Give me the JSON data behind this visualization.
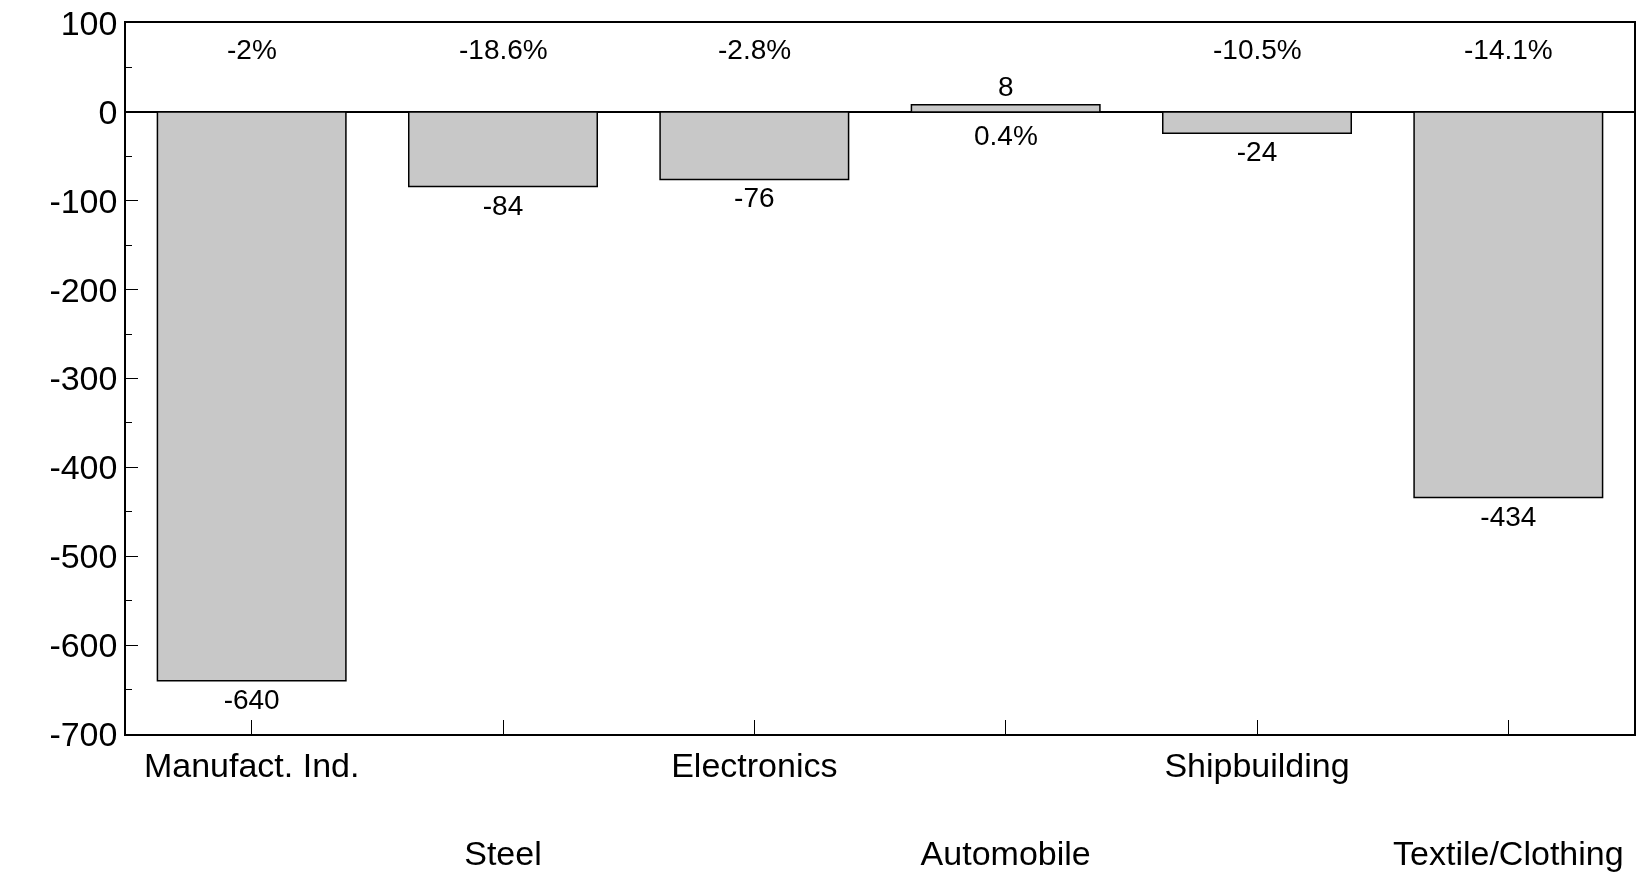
{
  "chart_data": {
    "type": "bar",
    "categories": [
      "Manufact. Ind.",
      "Steel",
      "Electronics",
      "Automobile",
      "Shipbuilding",
      "Textile/Clothing"
    ],
    "values": [
      -640,
      -84,
      -76,
      8,
      -24,
      -434
    ],
    "color": "#c8c8c8",
    "data_labels": true,
    "ylim": [
      -700,
      100
    ],
    "yticks": [
      100,
      0,
      -100,
      -200,
      -300,
      -400,
      -500,
      -600,
      -700
    ],
    "annotations": [
      "-2%",
      "-18.6%",
      "-2.8%",
      "0.4%",
      "-10.5%",
      "-14.1%"
    ]
  }
}
